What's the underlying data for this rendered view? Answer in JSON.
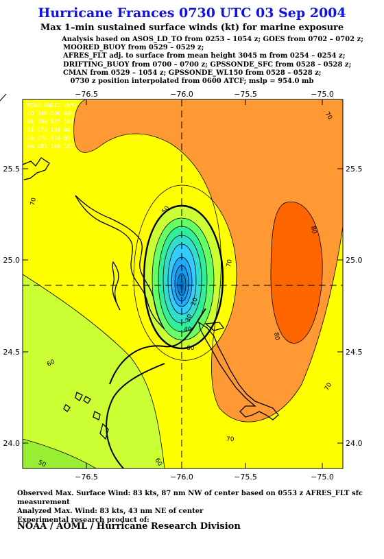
{
  "header": {
    "title": "Hurricane Frances 0730 UTC 03 Sep 2004",
    "subtitle": "Max 1–min sustained surface winds (kt) for marine exposure",
    "analysis_lines": [
      "Analysis based on  ASOS_LD_TO from 0253 – 1054 z;  GOES from 0702 – 0702 z;",
      "MOORED_BUOY from 0529 – 0529 z;",
      "AFRES_FLT adj. to surface from mean height 3045 m from 0254 – 0254 z;",
      "DRIFTING_BUOY from 0700 – 0700 z;  GPSSONDE_SFC from 0528 – 0528 z;",
      "CMAN from 0529 – 1054 z;  GPSSONDE_WL150 from 0528 – 0528 z;",
      "0730 z position interpolated from 0600 ATCF; mslp = 954.0 mb"
    ]
  },
  "map": {
    "lon_ticks": [
      "−76.5",
      "−76.0",
      "−75.5",
      "−75.0"
    ],
    "lat_ticks": [
      "25.5",
      "25.0",
      "24.5",
      "24.0"
    ],
    "wind_radii_table": {
      "header": "WIND RADII (NM)",
      "columns": "QD  34K  50K  64K",
      "rows": [
        "NE  190  147  102",
        "SE  176  134   94",
        "SW  174  114   59",
        "NW  201  146  101"
      ]
    },
    "contour_labels": [
      "70",
      "70",
      "80",
      "80",
      "70",
      "60",
      "70",
      "70",
      "60",
      "50",
      "60",
      "40",
      "30",
      "20",
      "50"
    ]
  },
  "footer": {
    "lines": [
      "Observed Max. Surface Wind: 83 kts, 87 nm NW of center based on 0553 z AFRES_FLT sfc measurement",
      "Analyzed Max. Wind: 83 kts, 43 nm NE of center",
      "Experimental research product of:"
    ],
    "organization": "NOAA / AOML / Hurricane Research Division"
  }
}
